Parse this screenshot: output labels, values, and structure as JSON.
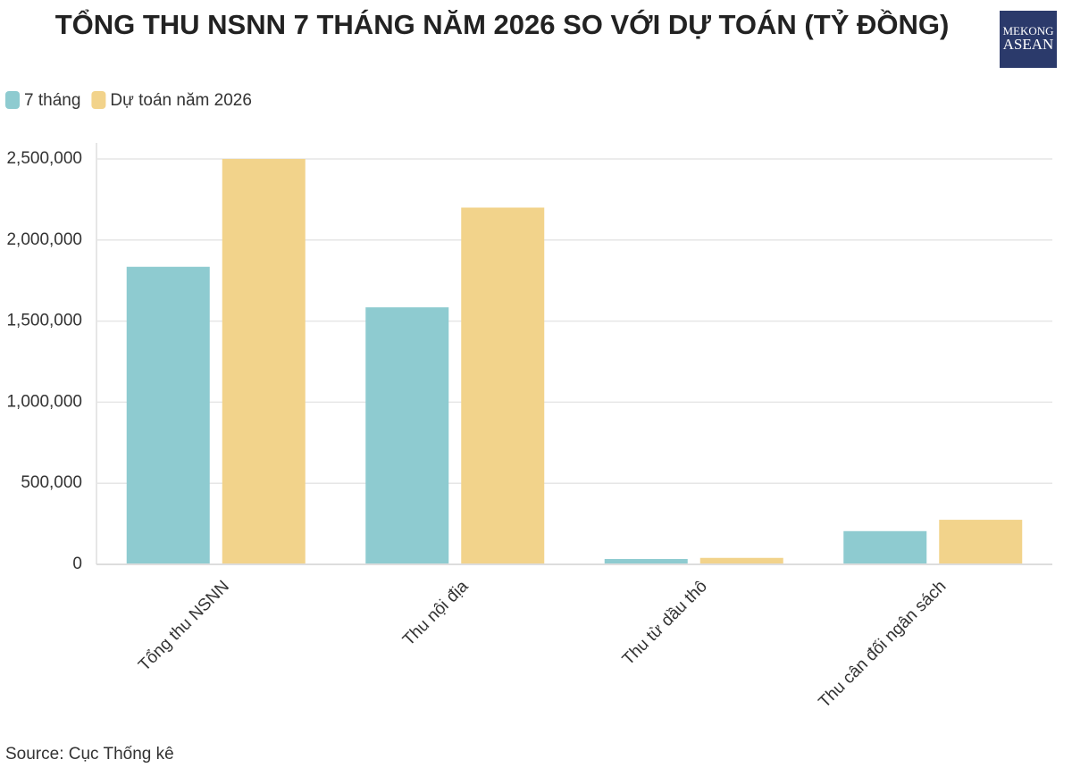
{
  "chart_data": {
    "type": "bar",
    "title": "TỔNG THU NSNN 7 THÁNG NĂM 2026 SO VỚI DỰ TOÁN (TỶ ĐỒNG)",
    "logo": [
      "MEKONG",
      "ASEAN"
    ],
    "categories": [
      "Tổng thu NSNN",
      "Thu nội địa",
      "Thu từ dầu thô",
      "Thu cân đối ngân sách"
    ],
    "series": [
      {
        "name": "7 tháng",
        "color": "#8ecbd0",
        "values": [
          1835000,
          1585000,
          33000,
          205000
        ]
      },
      {
        "name": "Dự toán năm 2026",
        "color": "#f2d38b",
        "values": [
          2500000,
          2200000,
          40000,
          275000
        ]
      }
    ],
    "ylim": [
      0,
      2500000
    ],
    "yticks": [
      0,
      {
        "value": 500000,
        "label": "500,000"
      },
      {
        "value": 1000000,
        "label": "1,000,000"
      },
      {
        "value": 1500000,
        "label": "1,500,000"
      },
      {
        "value": 2000000,
        "label": "2,000,000"
      },
      {
        "value": 2500000,
        "label": "2,500,000"
      }
    ],
    "grid": true,
    "source": "Source: Cục Thống kê"
  }
}
